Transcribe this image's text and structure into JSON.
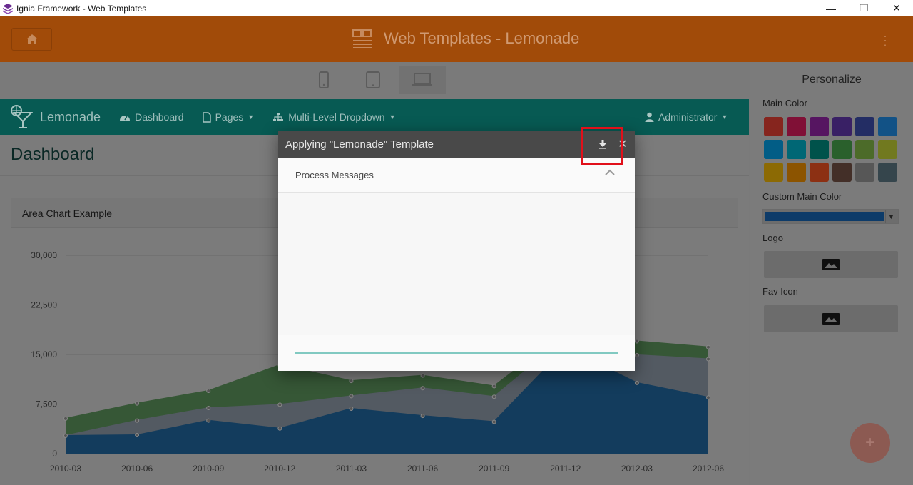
{
  "window": {
    "title": "Ignia Framework - Web Templates",
    "controls": [
      "—",
      "❐",
      "✕"
    ]
  },
  "header": {
    "title": "Web Templates - Lemonade",
    "home_icon": "home-icon",
    "menu_icon": "more-vertical-icon"
  },
  "devices": [
    "phone-icon",
    "tablet-icon",
    "laptop-icon"
  ],
  "panel": {
    "title": "Personalize",
    "main_color_label": "Main Color",
    "colors": [
      "#f44336",
      "#e91e63",
      "#9c27b0",
      "#673ab7",
      "#3f51b5",
      "#2196f3",
      "#03a9f4",
      "#00bcd4",
      "#009688",
      "#4caf50",
      "#8bc34a",
      "#cddc39",
      "#ffc107",
      "#ff9800",
      "#ff5722",
      "#795548",
      "#9e9e9e",
      "#607d8b"
    ],
    "custom_color_label": "Custom Main Color",
    "custom_color_value": "#1976d2",
    "logo_label": "Logo",
    "fav_icon_label": "Fav Icon",
    "fab_label": "+"
  },
  "preview": {
    "brand": "Lemonade",
    "nav": [
      {
        "label": "Dashboard",
        "icon": "dashboard-icon"
      },
      {
        "label": "Pages",
        "icon": "file-icon",
        "dropdown": true
      },
      {
        "label": "Multi-Level Dropdown",
        "icon": "sitemap-icon",
        "dropdown": true
      }
    ],
    "user": "Administrator",
    "page_title": "Dashboard",
    "card_title": "Area Chart Example"
  },
  "chart_data": {
    "type": "area",
    "stacked": true,
    "x": [
      "2010-03",
      "2010-06",
      "2010-09",
      "2010-12",
      "2011-03",
      "2011-06",
      "2011-09",
      "2011-12",
      "2012-03",
      "2012-06"
    ],
    "ylim": [
      0,
      30000
    ],
    "yticks": [
      "0",
      "7,500",
      "15,000",
      "22,500",
      "30,000"
    ],
    "series": [
      {
        "name": "",
        "color": "#2677b9",
        "values": [
          2700,
          2800,
          5000,
          3800,
          6800,
          5700,
          4800,
          16000,
          10700,
          8500
        ]
      },
      {
        "name": "",
        "color": "#a6b4c3",
        "values": [
          0,
          2200,
          1900,
          3600,
          1900,
          4200,
          3800,
          1500,
          4200,
          5800
        ]
      },
      {
        "name": "",
        "color": "#6cae6c",
        "values": [
          2600,
          2600,
          2600,
          6000,
          2300,
          1900,
          1600,
          1000,
          2100,
          1800
        ]
      }
    ],
    "grid": true
  },
  "modal": {
    "title": "Applying \"Lemonade\" Template",
    "download_icon": "download-icon",
    "close_label": "✕",
    "section_title": "Process Messages",
    "progress": 1.0
  }
}
